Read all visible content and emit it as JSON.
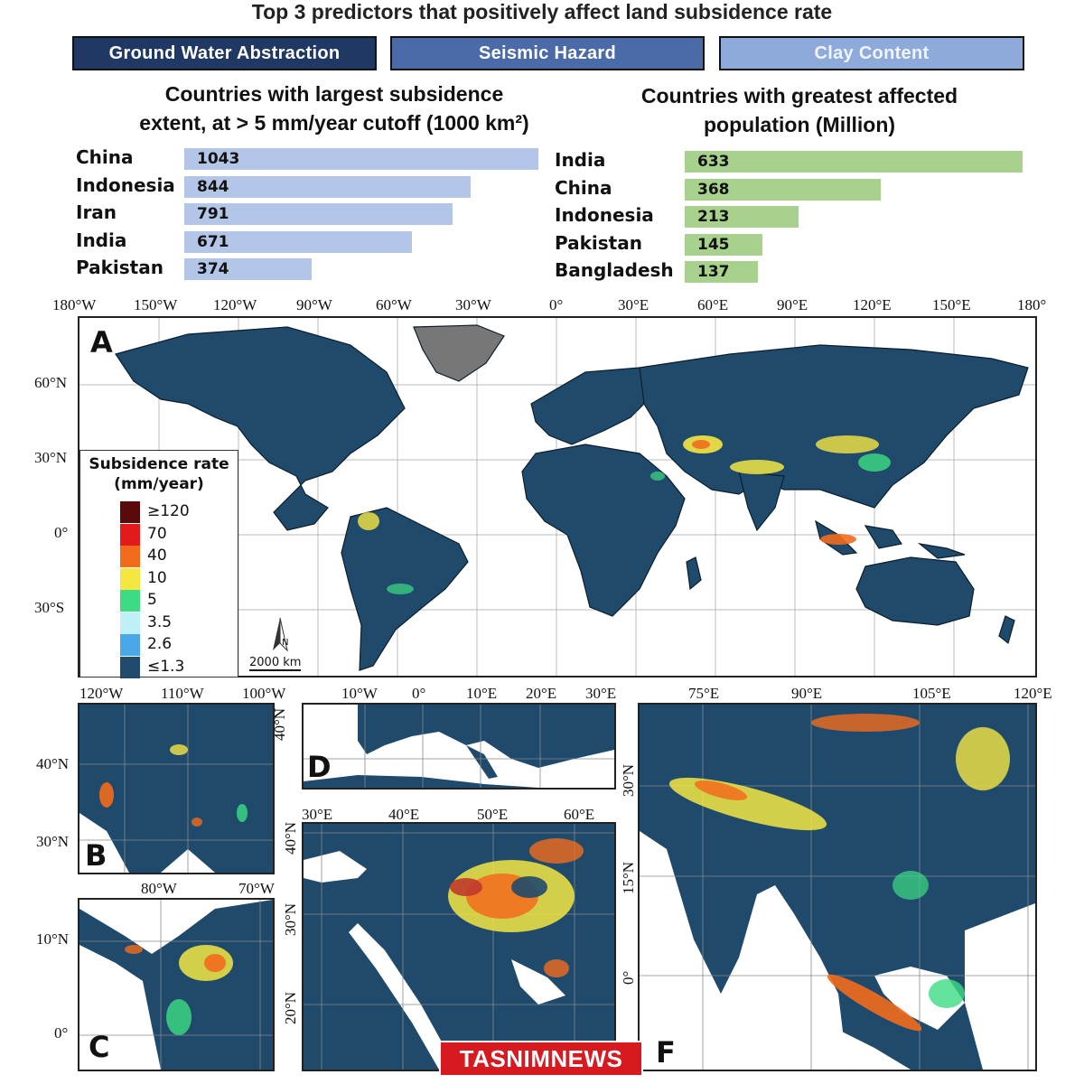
{
  "title": "Top 3 predictors that positively affect land subsidence rate",
  "predictors": [
    {
      "label": "Ground Water Abstraction",
      "color": "#1f3864"
    },
    {
      "label": "Seismic Hazard",
      "color": "#4a6aa8"
    },
    {
      "label": "Clay Content",
      "color": "#8eaadb"
    }
  ],
  "chart_data": [
    {
      "type": "bar",
      "title": "Countries with largest subsidence extent, at > 5 mm/year cutoff  (1000 km²)",
      "title_line1": "Countries with largest subsidence",
      "title_line2": "extent, at > 5 mm/year cutoff  (1000 km²)",
      "categories": [
        "China",
        "Indonesia",
        "Iran",
        "India",
        "Pakistan"
      ],
      "values": [
        1043,
        844,
        791,
        671,
        374
      ],
      "color": "#b4c6e7"
    },
    {
      "type": "bar",
      "title": "Countries with greatest affected population (Million)",
      "title_line1": "Countries with greatest affected",
      "title_line2": "population (Million)",
      "categories": [
        "India",
        "China",
        "Indonesia",
        "Pakistan",
        "Bangladesh"
      ],
      "values": [
        633,
        368,
        213,
        145,
        137
      ],
      "color": "#a9d18e"
    }
  ],
  "map": {
    "lon_labels": [
      "180°W",
      "150°W",
      "120°W",
      "90°W",
      "60°W",
      "30°W",
      "0°",
      "30°E",
      "60°E",
      "90°E",
      "120°E",
      "150°E",
      "180°"
    ],
    "lat_labels": [
      "60°N",
      "30°N",
      "0°",
      "30°S"
    ],
    "panel_label": "A",
    "scale_label": "2000 km",
    "north_label": "N",
    "ocean_color": "#ffffff",
    "land_color": "#1f4a6b"
  },
  "legend": {
    "title_line1": "Subsidence rate",
    "title_line2": "(mm/year)",
    "items": [
      {
        "label": "≥120",
        "color": "#5a0a0a"
      },
      {
        "label": "70",
        "color": "#e31a1c"
      },
      {
        "label": "40",
        "color": "#f26b1d"
      },
      {
        "label": "10",
        "color": "#f5e642"
      },
      {
        "label": "5",
        "color": "#3ddc84"
      },
      {
        "label": "3.5",
        "color": "#bff0f5"
      },
      {
        "label": "2.6",
        "color": "#4aa8e8"
      },
      {
        "label": "≤1.3",
        "color": "#1f4a6b"
      }
    ]
  },
  "insets": {
    "B": {
      "label": "B",
      "lon": [
        "120°W",
        "110°W",
        "100°W"
      ],
      "lat": [
        "40°N",
        "30°N"
      ]
    },
    "C": {
      "label": "C",
      "lon": [
        "80°W",
        "70°W"
      ],
      "lat": [
        "10°N",
        "0°"
      ]
    },
    "D": {
      "label": "D",
      "lon": [
        "10°W",
        "0°",
        "10°E",
        "20°E",
        "30°E"
      ],
      "lat": [
        "40°N"
      ]
    },
    "E": {
      "lon": [
        "30°E",
        "40°E",
        "50°E",
        "60°E"
      ],
      "lat": [
        "40°N",
        "30°N",
        "20°N"
      ]
    },
    "F": {
      "label": "F",
      "lon": [
        "75°E",
        "90°E",
        "105°E",
        "120°E"
      ],
      "lat": [
        "30°N",
        "15°N",
        "0°"
      ]
    }
  },
  "watermark": "TASNIMNEWS"
}
